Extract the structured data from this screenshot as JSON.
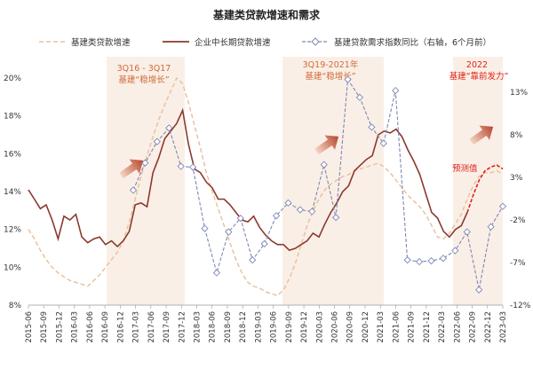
{
  "chart_data": {
    "type": "line",
    "title": "基建类贷款增速和需求",
    "legend": [
      {
        "label": "基建类贷款增速",
        "color": "#e9c2a0",
        "style": "dashed"
      },
      {
        "label": "企业中长期贷款增速",
        "color": "#8b3a2e",
        "style": "solid"
      },
      {
        "label": "基建贷款需求指数同比（右轴，6个月前）",
        "color": "#7e88b5",
        "style": "dashed-diamond"
      }
    ],
    "legend_position": "top",
    "grid": false,
    "y_left": {
      "ticks": [
        "8%",
        "10%",
        "12%",
        "14%",
        "16%",
        "18%",
        "20%"
      ],
      "range": [
        8,
        20
      ]
    },
    "y_right": {
      "ticks": [
        "-12%",
        "-7%",
        "-2%",
        "3%",
        "8%",
        "13%"
      ],
      "range": [
        -12,
        15
      ]
    },
    "x_labels": [
      "2015-06",
      "2015-09",
      "2015-12",
      "2016-03",
      "2016-06",
      "2016-09",
      "2016-12",
      "2017-03",
      "2017-06",
      "2017-09",
      "2017-12",
      "2018-03",
      "2018-06",
      "2018-09",
      "2018-12",
      "2019-03",
      "2019-06",
      "2019-09",
      "2019-12",
      "2020-03",
      "2020-06",
      "2020-09",
      "2020-12",
      "2021-03",
      "2021-06",
      "2021-09",
      "2021-12",
      "2022-03",
      "2022-06",
      "2022-09",
      "2022-12",
      "2023-03"
    ],
    "shaded_periods": [
      {
        "label_line1": "3Q16 - 3Q17",
        "label_line2": "基建“稳增长”",
        "color": "#d06a3a"
      },
      {
        "label_line1": "3Q19-2021年",
        "label_line2": "基建“稳增长”",
        "color": "#d06a3a"
      },
      {
        "label_line1": "2022",
        "label_line2": "基建“靠前发力”",
        "color": "#e0201a"
      }
    ],
    "forecast_label": "预测值",
    "series": [
      {
        "name": "基建类贷款增速",
        "axis": "left",
        "values": [
          12.0,
          11.5,
          10.9,
          10.4,
          10.0,
          9.7,
          9.5,
          9.3,
          9.2,
          9.1,
          9.0,
          9.3,
          9.6,
          10.0,
          10.4,
          10.8,
          11.4,
          12.4,
          13.6,
          14.8,
          15.9,
          16.9,
          17.8,
          18.6,
          19.3,
          20.0,
          19.7,
          18.7,
          17.5,
          16.3,
          15.0,
          14.0,
          13.1,
          12.2,
          11.3,
          10.4,
          9.7,
          9.2,
          9.0,
          8.9,
          8.7,
          8.6,
          8.5,
          8.8,
          9.4,
          10.2,
          11.2,
          12.2,
          13.0,
          13.6,
          14.1,
          14.4,
          14.6,
          14.8,
          14.9,
          15.1,
          15.2,
          15.3,
          15.4,
          15.5,
          15.3,
          15.0,
          14.6,
          14.2,
          13.8,
          13.5,
          13.2,
          12.8,
          12.2,
          11.6,
          11.5,
          11.8,
          12.3,
          12.8,
          13.6,
          14.3,
          14.8,
          15.0,
          15.0,
          15.1,
          14.9
        ]
      },
      {
        "name": "企业中长期贷款增速",
        "axis": "left",
        "values": [
          14.1,
          13.6,
          13.1,
          13.3,
          12.5,
          11.5,
          12.7,
          12.5,
          12.8,
          11.6,
          11.3,
          11.5,
          11.6,
          11.2,
          11.4,
          11.1,
          11.4,
          11.9,
          13.3,
          13.4,
          13.2,
          15.0,
          15.8,
          16.8,
          17.2,
          17.6,
          18.3,
          16.5,
          15.2,
          15.0,
          14.5,
          14.2,
          13.6,
          13.6,
          13.3,
          12.9,
          12.5,
          12.4,
          12.7,
          12.1,
          11.7,
          11.4,
          11.2,
          11.2,
          10.9,
          11.0,
          11.2,
          11.4,
          11.8,
          11.6,
          12.3,
          12.9,
          13.4,
          14.0,
          14.3,
          15.1,
          15.4,
          15.7,
          15.9,
          17.0,
          17.2,
          17.1,
          17.3,
          16.9,
          16.2,
          15.6,
          14.9,
          13.9,
          12.9,
          12.6,
          11.9,
          11.6,
          12.0,
          12.2,
          12.9,
          13.8,
          14.6,
          15.1,
          15.3,
          15.4,
          15.2
        ]
      },
      {
        "name": "基建贷款需求指数同比（右轴，6个月前）",
        "axis": "right",
        "values": [
          null,
          null,
          null,
          null,
          null,
          null,
          null,
          null,
          null,
          null,
          null,
          null,
          null,
          null,
          null,
          null,
          null,
          null,
          null,
          null,
          1.5,
          4.7,
          7.2,
          8.8,
          4.3,
          4.2,
          -3.0,
          -8.2,
          -3.4,
          -1.8,
          -6.7,
          -4.8,
          -1.5,
          0.0,
          -0.8,
          -1.0,
          4.5,
          -1.7,
          14.5,
          12.4,
          8.9,
          7.0,
          13.2,
          -6.7,
          -6.9,
          -6.8,
          -6.5,
          -5.6,
          -3.4,
          -10.2,
          -2.8,
          -0.4
        ]
      }
    ]
  }
}
